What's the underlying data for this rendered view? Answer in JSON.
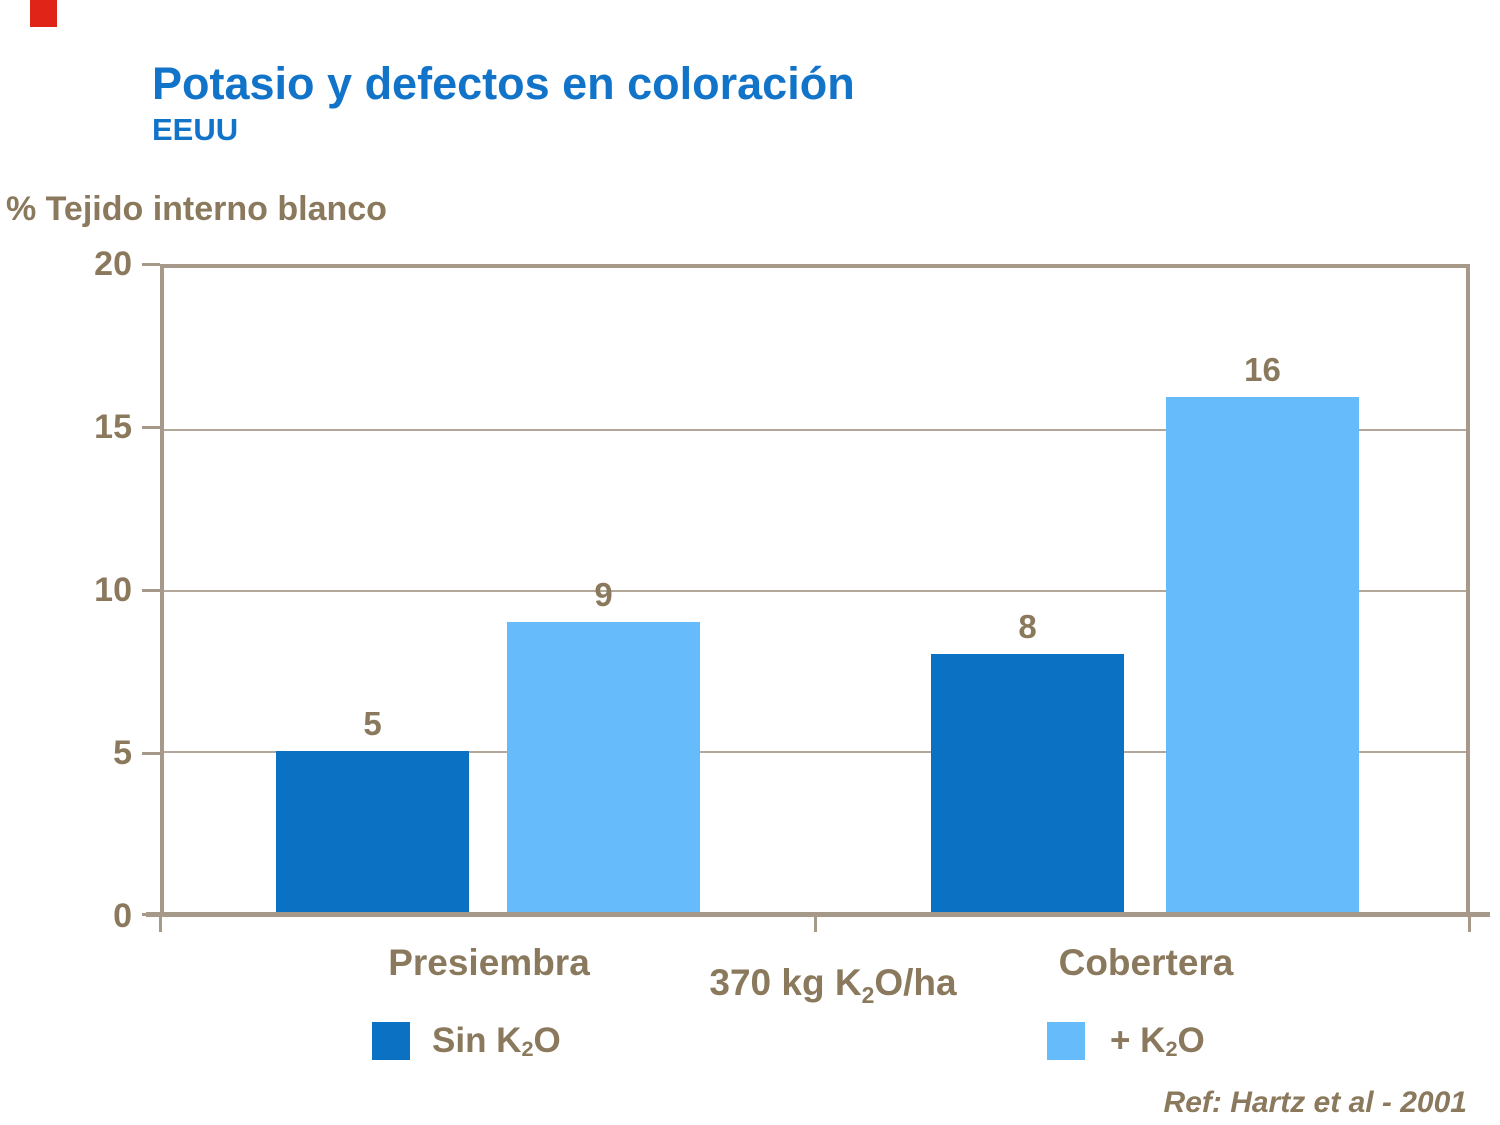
{
  "slide": {
    "title": "Potasio y defectos en coloración",
    "subtitle": "EEUU",
    "reference": "Ref: Hartz et al - 2001",
    "accent_color": "#E02418",
    "title_color": "#1174C9",
    "text_color": "#8A795C",
    "axis_color": "#A6998A"
  },
  "chart_data": {
    "type": "bar",
    "title": "% Tejido interno blanco",
    "ylabel": "% Tejido interno blanco",
    "categories": [
      "Presiembra",
      "Cobertera"
    ],
    "series": [
      {
        "name": "Sin K2O",
        "color": "#0B72C3",
        "values": [
          5,
          8
        ]
      },
      {
        "name": "+ K2O",
        "color": "#66BBFB",
        "values": [
          9,
          16
        ]
      }
    ],
    "ylim": [
      0,
      20
    ],
    "yticks": [
      "20",
      "15",
      "10",
      "5",
      "0"
    ],
    "grid": "horizontal lines at 5, 10, 15; framed plot area",
    "legend_position": "bottom",
    "x_axis_note": {
      "pre": "370 kg K",
      "sub": "2",
      "post": "O/ha"
    },
    "legend": [
      {
        "pre": "Sin K",
        "sub": "2",
        "post": "O"
      },
      {
        "pre": "+ K",
        "sub": "2",
        "post": "O"
      }
    ]
  }
}
